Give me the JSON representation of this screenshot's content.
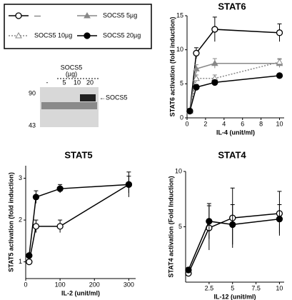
{
  "chart_data": [
    {
      "type": "line",
      "title": "STAT6",
      "xlabel": "IL-4 (unit/ml)",
      "ylabel": "STAT6 activation (fold induction)",
      "x": [
        0.3,
        1,
        3,
        10
      ],
      "xlim": [
        0,
        10.5
      ],
      "ylim": [
        0,
        15
      ],
      "xticks": [
        0,
        2,
        4,
        6,
        8,
        10
      ],
      "yticks": [
        0,
        5,
        10,
        15
      ],
      "series": [
        {
          "name": "—",
          "color": "#000000",
          "marker": "circle",
          "fill": "#ffffff",
          "dash": "none",
          "values": [
            1,
            9.5,
            13,
            12.5
          ],
          "errors": [
            0,
            0.8,
            1.8,
            1.3
          ]
        },
        {
          "name": "SOCS5 5µg",
          "color": "#888888",
          "marker": "triangle",
          "fill": "#888888",
          "dash": "none",
          "values": [
            1,
            7.2,
            8,
            8
          ],
          "errors": [
            0,
            0.6,
            0.7,
            0.6
          ]
        },
        {
          "name": "SOCS5 10µg",
          "color": "#888888",
          "marker": "triangle",
          "fill": "#ffffff",
          "dash": "2,2",
          "values": [
            1,
            5.8,
            5.8,
            8.2
          ],
          "errors": [
            0,
            0.5,
            0.5,
            0.5
          ]
        },
        {
          "name": "SOCS5 20µg",
          "color": "#000000",
          "marker": "circle",
          "fill": "#000000",
          "dash": "none",
          "values": [
            1,
            4.5,
            5.2,
            6.2
          ],
          "errors": [
            0,
            0.4,
            0.3,
            0.3
          ]
        }
      ]
    },
    {
      "type": "line",
      "title": "STAT5",
      "xlabel": "IL-2 (unit/ml)",
      "ylabel": "STAT5 activation (fold induction)",
      "x": [
        10,
        30,
        100,
        300
      ],
      "xlim": [
        0,
        320
      ],
      "ylim": [
        0.6,
        3.3
      ],
      "xticks": [
        0,
        100,
        200,
        300
      ],
      "yticks": [
        1,
        2,
        3
      ],
      "series": [
        {
          "name": "—",
          "color": "#000000",
          "marker": "circle",
          "fill": "#ffffff",
          "dash": "none",
          "values": [
            1.0,
            1.85,
            1.85,
            2.85
          ],
          "errors": [
            0,
            0.15,
            0.15,
            0.3
          ]
        },
        {
          "name": "SOCS5 20µg",
          "color": "#000000",
          "marker": "circle",
          "fill": "#000000",
          "dash": "none",
          "values": [
            1.15,
            2.55,
            2.75,
            2.85
          ],
          "errors": [
            0,
            0.15,
            0.1,
            0.2
          ]
        }
      ]
    },
    {
      "type": "line",
      "title": "STAT4",
      "xlabel": "IL-12 (unit/ml)",
      "ylabel": "STAT4 activation (Fold Induction)",
      "x": [
        0.3,
        2.5,
        5,
        10
      ],
      "xlim": [
        0,
        10.5
      ],
      "ylim": [
        0,
        10
      ],
      "xticks": [
        2.5,
        5,
        7.5,
        10
      ],
      "yticks": [
        5,
        10
      ],
      "series": [
        {
          "name": "—",
          "color": "#000000",
          "marker": "circle",
          "fill": "#ffffff",
          "dash": "none",
          "values": [
            0.8,
            4.9,
            5.8,
            6.2
          ],
          "errors": [
            0,
            2,
            2.7,
            2
          ]
        },
        {
          "name": "SOCS5 20µg",
          "color": "#000000",
          "marker": "circle",
          "fill": "#000000",
          "dash": "none",
          "values": [
            1.1,
            5.5,
            5.2,
            5.7
          ],
          "errors": [
            0,
            1.6,
            1.8,
            1.3
          ]
        }
      ]
    }
  ],
  "blot": {
    "title": "SOCS5",
    "unit": "(µg)",
    "lanes": [
      "-",
      "5",
      "10",
      "20"
    ],
    "markers": [
      "90",
      "43"
    ],
    "band_label": "←SOCS5"
  }
}
